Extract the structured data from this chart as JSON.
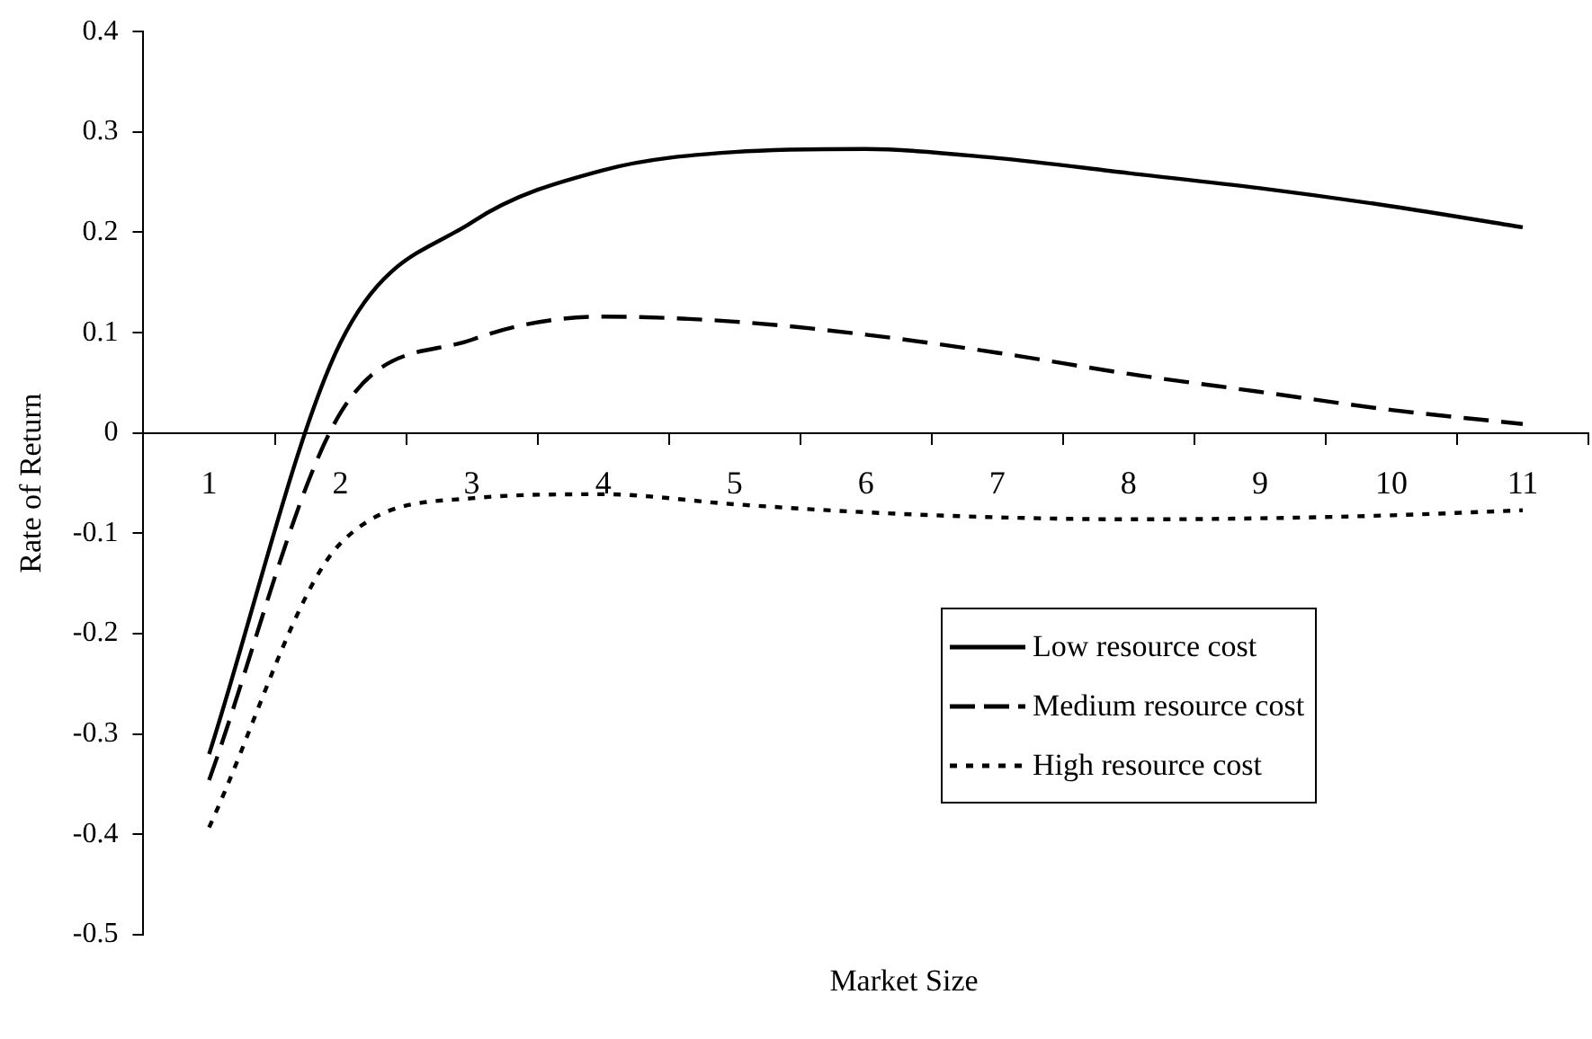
{
  "chart_data": {
    "type": "line",
    "xlabel": "Market Size",
    "ylabel": "Rate of Return",
    "categories": [
      "1",
      "2",
      "3",
      "4",
      "5",
      "6",
      "7",
      "8",
      "9",
      "10",
      "11"
    ],
    "series": [
      {
        "name": "Low resource cost",
        "color": "#000000",
        "line_style": "solid",
        "values": [
          -0.32,
          0.09,
          0.21,
          0.262,
          0.28,
          0.283,
          0.274,
          0.259,
          0.244,
          0.226,
          0.205
        ]
      },
      {
        "name": "Medium resource cost",
        "color": "#000000",
        "line_style": "dashed",
        "values": [
          -0.346,
          0.02,
          0.093,
          0.116,
          0.111,
          0.098,
          0.08,
          0.059,
          0.041,
          0.023,
          0.009
        ]
      },
      {
        "name": "High resource cost",
        "color": "#000000",
        "line_style": "dotted",
        "values": [
          -0.393,
          -0.11,
          -0.065,
          -0.061,
          -0.071,
          -0.079,
          -0.084,
          -0.086,
          -0.085,
          -0.082,
          -0.077
        ]
      }
    ],
    "ylim": [
      -0.5,
      0.4
    ],
    "yticks": [
      -0.5,
      -0.4,
      -0.3,
      -0.2,
      -0.1,
      0,
      0.1,
      0.2,
      0.3,
      0.4
    ],
    "grid": false,
    "legend": "bottom right",
    "marker": "none"
  }
}
